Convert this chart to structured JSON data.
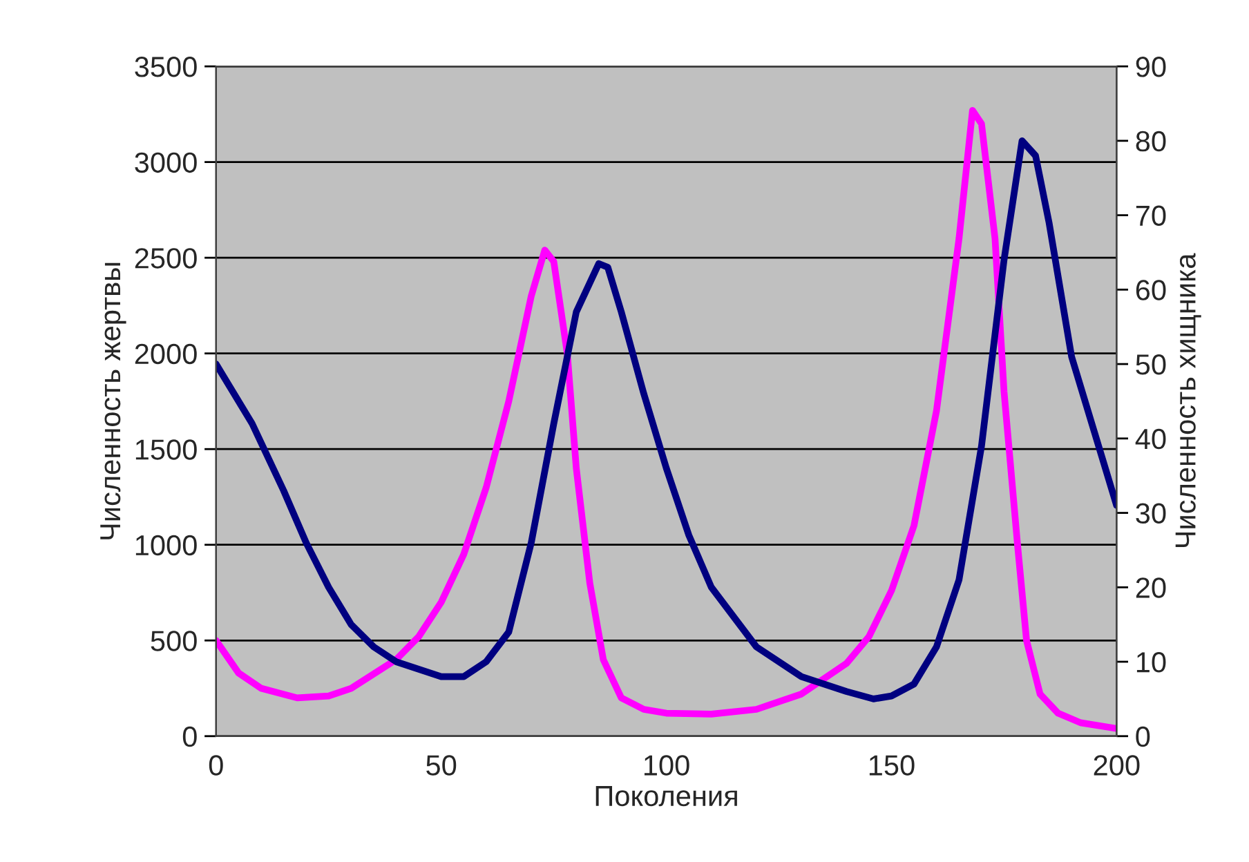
{
  "chart_data": {
    "type": "line",
    "xlabel": "Поколения",
    "ylabel": "Численность жертвы",
    "y2label": "Численность хищника",
    "xlim": [
      0,
      200
    ],
    "xticks": [
      0,
      50,
      100,
      150,
      200
    ],
    "ylim": [
      0,
      3500
    ],
    "yticks": [
      0,
      500,
      1000,
      1500,
      2000,
      2500,
      3000,
      3500
    ],
    "y2lim": [
      0,
      90
    ],
    "y2ticks": [
      0,
      10,
      20,
      30,
      40,
      50,
      60,
      70,
      80,
      90
    ],
    "grid": "y",
    "legend": false,
    "marker": "none",
    "line_style": "solid",
    "series": [
      {
        "color": "#ff00ff",
        "axis": "y",
        "x": [
          0,
          5,
          10,
          18,
          25,
          30,
          40,
          45,
          50,
          55,
          60,
          65,
          70,
          73,
          75,
          78,
          80,
          83,
          86,
          90,
          95,
          100,
          110,
          120,
          130,
          140,
          145,
          150,
          155,
          160,
          165,
          168,
          170,
          173,
          175,
          178,
          180,
          183,
          187,
          192,
          200
        ],
        "values": [
          500,
          330,
          250,
          200,
          210,
          250,
          400,
          520,
          700,
          950,
          1300,
          1750,
          2300,
          2540,
          2480,
          2000,
          1400,
          800,
          400,
          200,
          140,
          120,
          115,
          140,
          220,
          380,
          520,
          760,
          1100,
          1700,
          2600,
          3270,
          3200,
          2600,
          1800,
          1000,
          500,
          220,
          120,
          70,
          40
        ]
      },
      {
        "color": "#000080",
        "axis": "y2",
        "x": [
          0,
          8,
          15,
          20,
          25,
          30,
          35,
          40,
          45,
          50,
          52,
          55,
          60,
          65,
          70,
          75,
          80,
          85,
          87,
          90,
          95,
          100,
          105,
          110,
          120,
          130,
          140,
          146,
          150,
          155,
          160,
          165,
          170,
          175,
          179,
          182,
          185,
          190,
          195,
          200
        ],
        "values": [
          50,
          42,
          33,
          26,
          20,
          15,
          12,
          10,
          9,
          8,
          8,
          8,
          10,
          14,
          26,
          42,
          57,
          63.5,
          63,
          57,
          46,
          36,
          27,
          20,
          12,
          8,
          6,
          5,
          5.4,
          7,
          12,
          21,
          39,
          64,
          80,
          78,
          69,
          51,
          41,
          31
        ]
      }
    ]
  }
}
